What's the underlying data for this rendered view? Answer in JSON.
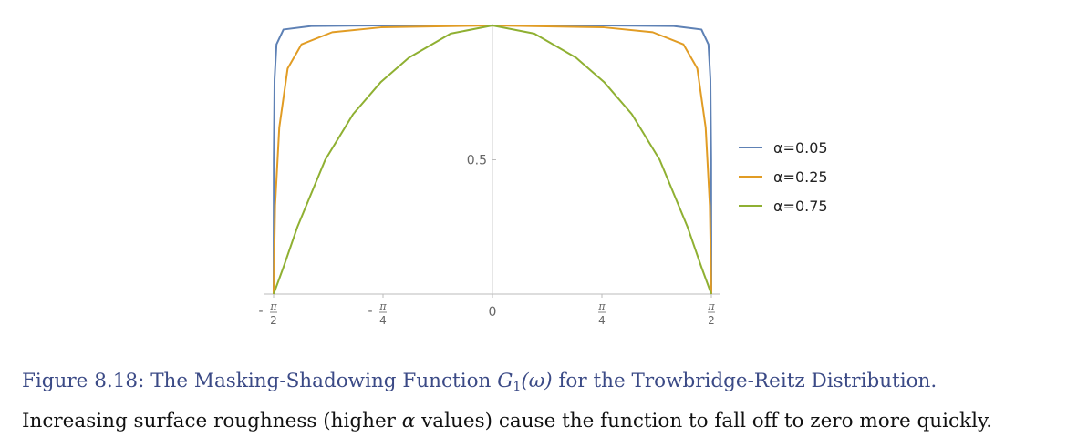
{
  "chart_data": {
    "type": "line",
    "x_tick_labels": [
      {
        "sign": "-",
        "num": "π",
        "den": "2"
      },
      {
        "sign": "-",
        "num": "π",
        "den": "4"
      },
      {
        "sign": "",
        "label": "0"
      },
      {
        "sign": "",
        "num": "π",
        "den": "4"
      },
      {
        "sign": "",
        "num": "π",
        "den": "2"
      }
    ],
    "x_tick_values": [
      -1.5708,
      -0.7854,
      0,
      0.7854,
      1.5708
    ],
    "y_tick_labels": [
      "0.5"
    ],
    "y_tick_values": [
      0.5
    ],
    "xlim": [
      -1.5708,
      1.5708
    ],
    "ylim": [
      0,
      1
    ],
    "grid": false,
    "legend_position": "right",
    "series": [
      {
        "name": "α=0.05",
        "alpha": 0.05,
        "color": "#5e81b5",
        "points": [
          [
            -1.5708,
            0
          ],
          [
            -1.5695,
            0.5
          ],
          [
            -1.564,
            0.8
          ],
          [
            -1.55,
            0.93
          ],
          [
            -1.5,
            0.985
          ],
          [
            -1.3,
            0.998
          ],
          [
            -0.8,
            1
          ],
          [
            0,
            1
          ],
          [
            0.8,
            1
          ],
          [
            1.3,
            0.998
          ],
          [
            1.5,
            0.985
          ],
          [
            1.55,
            0.93
          ],
          [
            1.564,
            0.8
          ],
          [
            1.5695,
            0.5
          ],
          [
            1.5708,
            0
          ]
        ]
      },
      {
        "name": "α=0.25",
        "alpha": 0.25,
        "color": "#e19c24",
        "points": [
          [
            -1.5708,
            0
          ],
          [
            -1.56,
            0.33
          ],
          [
            -1.53,
            0.62
          ],
          [
            -1.47,
            0.84
          ],
          [
            -1.37,
            0.93
          ],
          [
            -1.15,
            0.975
          ],
          [
            -0.8,
            0.993
          ],
          [
            0,
            1
          ],
          [
            0.8,
            0.993
          ],
          [
            1.15,
            0.975
          ],
          [
            1.37,
            0.93
          ],
          [
            1.47,
            0.84
          ],
          [
            1.53,
            0.62
          ],
          [
            1.56,
            0.33
          ],
          [
            1.5708,
            0
          ]
        ]
      },
      {
        "name": "α=0.75",
        "alpha": 0.75,
        "color": "#8fb032",
        "points": [
          [
            -1.5708,
            0
          ],
          [
            -1.5,
            0.1
          ],
          [
            -1.4,
            0.25
          ],
          [
            -1.2,
            0.5
          ],
          [
            -1.0,
            0.67
          ],
          [
            -0.8,
            0.79
          ],
          [
            -0.6,
            0.88
          ],
          [
            -0.3,
            0.97
          ],
          [
            0,
            1
          ],
          [
            0.3,
            0.97
          ],
          [
            0.6,
            0.88
          ],
          [
            0.8,
            0.79
          ],
          [
            1.0,
            0.67
          ],
          [
            1.2,
            0.5
          ],
          [
            1.4,
            0.25
          ],
          [
            1.5,
            0.1
          ],
          [
            1.5708,
            0
          ]
        ]
      }
    ]
  },
  "caption": {
    "line1_prefix": "Figure 8.18: The Masking-Shadowing Function ",
    "line1_math_main": "G",
    "line1_math_sub": "1",
    "line1_math_arg": "(ω)",
    "line1_suffix": " for the Trowbridge-Reitz Distribution.",
    "line2_prefix": "Increasing surface roughness (higher ",
    "line2_math": "α",
    "line2_suffix": " values) cause the function to fall off to zero more quickly."
  }
}
